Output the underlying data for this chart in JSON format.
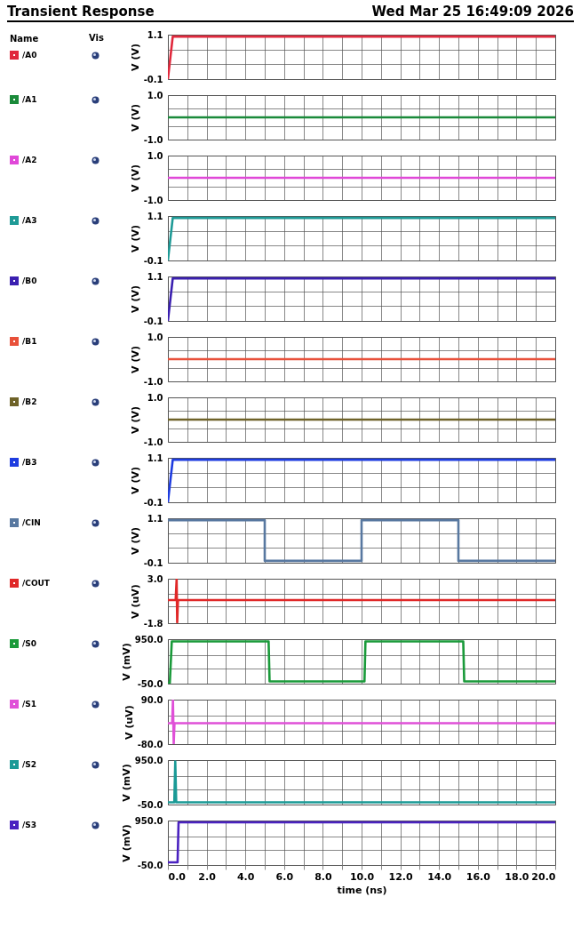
{
  "chart_data": [
    {
      "type": "line",
      "title": "Transient Response",
      "annotations": [
        "Wed Mar 25 16:49:09 2026",
        "Vis"
      ],
      "legend_title": "Name",
      "legend": "left",
      "grid": true,
      "tick_labels": "y",
      "ylabel": "V (V)",
      "x": [
        0,
        0.25,
        20
      ],
      "xlim": [
        0,
        20
      ],
      "xticks": [
        0,
        1,
        2,
        3,
        4,
        5,
        6,
        7,
        8,
        9,
        10,
        11,
        12,
        13,
        14,
        15,
        16,
        17,
        18,
        19,
        20
      ],
      "ylim": [
        -0.1,
        1.1
      ],
      "yticks": [
        -0.1,
        {
          "value": 0.3,
          "label": null
        },
        {
          "value": 0.7,
          "label": null
        },
        1.1
      ],
      "series": [
        {
          "name": "/A0",
          "color": "#e0283c",
          "values": [
            -0.1,
            1.05,
            1.05
          ]
        }
      ]
    },
    {
      "type": "line",
      "legend": "left",
      "grid": true,
      "tick_labels": "y",
      "ylabel": "V (V)",
      "x": [
        0,
        20
      ],
      "xlim": [
        0,
        20
      ],
      "xticks": [
        0,
        1,
        2,
        3,
        4,
        5,
        6,
        7,
        8,
        9,
        10,
        11,
        12,
        13,
        14,
        15,
        16,
        17,
        18,
        19,
        20
      ],
      "ylim": [
        -1,
        1
      ],
      "yticks": [
        {
          "value": -1,
          "label": "-1.0"
        },
        {
          "value": -0.4,
          "label": null
        },
        {
          "value": 0.4,
          "label": null
        },
        {
          "value": 1,
          "label": "1.0"
        }
      ],
      "series": [
        {
          "name": "/A1",
          "color": "#1a8a3a",
          "values": [
            0,
            0
          ]
        }
      ]
    },
    {
      "type": "line",
      "legend": "left",
      "grid": true,
      "tick_labels": "y",
      "ylabel": "V (V)",
      "x": [
        0,
        20
      ],
      "xlim": [
        0,
        20
      ],
      "xticks": [
        0,
        1,
        2,
        3,
        4,
        5,
        6,
        7,
        8,
        9,
        10,
        11,
        12,
        13,
        14,
        15,
        16,
        17,
        18,
        19,
        20
      ],
      "ylim": [
        -1,
        1
      ],
      "yticks": [
        {
          "value": -1,
          "label": "-1.0"
        },
        {
          "value": -0.4,
          "label": null
        },
        {
          "value": 0.4,
          "label": null
        },
        {
          "value": 1,
          "label": "1.0"
        }
      ],
      "series": [
        {
          "name": "/A2",
          "color": "#e048d8",
          "values": [
            0,
            0
          ]
        }
      ]
    },
    {
      "type": "line",
      "legend": "left",
      "grid": true,
      "tick_labels": "y",
      "ylabel": "V (V)",
      "x": [
        0,
        0.25,
        20
      ],
      "xlim": [
        0,
        20
      ],
      "xticks": [
        0,
        1,
        2,
        3,
        4,
        5,
        6,
        7,
        8,
        9,
        10,
        11,
        12,
        13,
        14,
        15,
        16,
        17,
        18,
        19,
        20
      ],
      "ylim": [
        -0.1,
        1.1
      ],
      "yticks": [
        -0.1,
        {
          "value": 0.3,
          "label": null
        },
        {
          "value": 0.7,
          "label": null
        },
        1.1
      ],
      "series": [
        {
          "name": "/A3",
          "color": "#1e9a96",
          "values": [
            -0.1,
            1.05,
            1.05
          ]
        }
      ]
    },
    {
      "type": "line",
      "legend": "left",
      "grid": true,
      "tick_labels": "y",
      "ylabel": "V (V)",
      "x": [
        0,
        0.25,
        20
      ],
      "xlim": [
        0,
        20
      ],
      "xticks": [
        0,
        1,
        2,
        3,
        4,
        5,
        6,
        7,
        8,
        9,
        10,
        11,
        12,
        13,
        14,
        15,
        16,
        17,
        18,
        19,
        20
      ],
      "ylim": [
        -0.1,
        1.1
      ],
      "yticks": [
        -0.1,
        {
          "value": 0.3,
          "label": null
        },
        {
          "value": 0.7,
          "label": null
        },
        1.1
      ],
      "series": [
        {
          "name": "/B0",
          "color": "#3a1fb0",
          "values": [
            -0.1,
            1.05,
            1.05
          ]
        }
      ]
    },
    {
      "type": "line",
      "legend": "left",
      "grid": true,
      "tick_labels": "y",
      "ylabel": "V (V)",
      "x": [
        0,
        20
      ],
      "xlim": [
        0,
        20
      ],
      "xticks": [
        0,
        1,
        2,
        3,
        4,
        5,
        6,
        7,
        8,
        9,
        10,
        11,
        12,
        13,
        14,
        15,
        16,
        17,
        18,
        19,
        20
      ],
      "ylim": [
        -1,
        1
      ],
      "yticks": [
        {
          "value": -1,
          "label": "-1.0"
        },
        {
          "value": -0.4,
          "label": null
        },
        {
          "value": 0.4,
          "label": null
        },
        {
          "value": 1,
          "label": "1.0"
        }
      ],
      "series": [
        {
          "name": "/B1",
          "color": "#e8503a",
          "values": [
            0,
            0
          ]
        }
      ]
    },
    {
      "type": "line",
      "legend": "left",
      "grid": true,
      "tick_labels": "y",
      "ylabel": "V (V)",
      "x": [
        0,
        20
      ],
      "xlim": [
        0,
        20
      ],
      "xticks": [
        0,
        1,
        2,
        3,
        4,
        5,
        6,
        7,
        8,
        9,
        10,
        11,
        12,
        13,
        14,
        15,
        16,
        17,
        18,
        19,
        20
      ],
      "ylim": [
        -1,
        1
      ],
      "yticks": [
        {
          "value": -1,
          "label": "-1.0"
        },
        {
          "value": -0.4,
          "label": null
        },
        {
          "value": 0.4,
          "label": null
        },
        {
          "value": 1,
          "label": "1.0"
        }
      ],
      "series": [
        {
          "name": "/B2",
          "color": "#6e6228",
          "values": [
            0,
            0
          ]
        }
      ]
    },
    {
      "type": "line",
      "legend": "left",
      "grid": true,
      "tick_labels": "y",
      "ylabel": "V (V)",
      "x": [
        0,
        0.25,
        20
      ],
      "xlim": [
        0,
        20
      ],
      "xticks": [
        0,
        1,
        2,
        3,
        4,
        5,
        6,
        7,
        8,
        9,
        10,
        11,
        12,
        13,
        14,
        15,
        16,
        17,
        18,
        19,
        20
      ],
      "ylim": [
        -0.1,
        1.1
      ],
      "yticks": [
        -0.1,
        {
          "value": 0.3,
          "label": null
        },
        {
          "value": 0.7,
          "label": null
        },
        1.1
      ],
      "series": [
        {
          "name": "/B3",
          "color": "#1e3ce0",
          "values": [
            -0.1,
            1.05,
            1.05
          ]
        }
      ]
    },
    {
      "type": "line",
      "legend": "left",
      "grid": true,
      "tick_labels": "y",
      "ylabel": "V (V)",
      "x": [
        0,
        5,
        5,
        10,
        10,
        15,
        15,
        20
      ],
      "xlim": [
        0,
        20
      ],
      "xticks": [
        0,
        1,
        2,
        3,
        4,
        5,
        6,
        7,
        8,
        9,
        10,
        11,
        12,
        13,
        14,
        15,
        16,
        17,
        18,
        19,
        20
      ],
      "ylim": [
        -0.1,
        1.1
      ],
      "yticks": [
        -0.1,
        {
          "value": 0.3,
          "label": null
        },
        {
          "value": 0.7,
          "label": null
        },
        1.1
      ],
      "series": [
        {
          "name": "/CIN",
          "color": "#5878a0",
          "values": [
            1.05,
            1.05,
            -0.05,
            -0.05,
            1.05,
            1.05,
            -0.05,
            -0.05
          ]
        }
      ]
    },
    {
      "type": "line",
      "legend": "left",
      "grid": true,
      "tick_labels": "y",
      "ylabel": "V (uV)",
      "x": [
        0,
        0.4,
        0.45,
        0.48,
        0.52,
        20
      ],
      "xlim": [
        0,
        20
      ],
      "xticks": [
        0,
        1,
        2,
        3,
        4,
        5,
        6,
        7,
        8,
        9,
        10,
        11,
        12,
        13,
        14,
        15,
        16,
        17,
        18,
        19,
        20
      ],
      "ylim": [
        -1.8,
        3
      ],
      "yticks": [
        -1.8,
        {
          "value": 0,
          "label": null
        },
        {
          "value": 1.4,
          "label": null
        },
        {
          "value": 3,
          "label": "3.0"
        }
      ],
      "series": [
        {
          "name": "/COUT",
          "color": "#e02828",
          "values": [
            0.7,
            0.7,
            2.9,
            -1.7,
            0.7,
            0.7
          ]
        }
      ]
    },
    {
      "type": "line",
      "legend": "left",
      "grid": true,
      "tick_labels": "y",
      "ylabel": "V (mV)",
      "x": [
        0,
        0.1,
        0.2,
        5.2,
        5.25,
        10.15,
        10.2,
        15.25,
        15.3,
        20
      ],
      "xlim": [
        0,
        20
      ],
      "xticks": [
        0,
        1,
        2,
        3,
        4,
        5,
        6,
        7,
        8,
        9,
        10,
        11,
        12,
        13,
        14,
        15,
        16,
        17,
        18,
        19,
        20
      ],
      "ylim": [
        -50,
        950
      ],
      "yticks": [
        {
          "value": -50,
          "label": "-50.0"
        },
        {
          "value": 300,
          "label": null
        },
        {
          "value": 600,
          "label": null
        },
        {
          "value": 950,
          "label": "950.0"
        }
      ],
      "series": [
        {
          "name": "/S0",
          "color": "#1a9a3a",
          "values": [
            -30,
            -30,
            900,
            900,
            0,
            0,
            900,
            900,
            0,
            0
          ]
        }
      ]
    },
    {
      "type": "line",
      "legend": "left",
      "grid": true,
      "tick_labels": "y",
      "ylabel": "V (uV)",
      "x": [
        0,
        0.22,
        0.26,
        0.3,
        0.34,
        20
      ],
      "xlim": [
        0,
        20
      ],
      "xticks": [
        0,
        1,
        2,
        3,
        4,
        5,
        6,
        7,
        8,
        9,
        10,
        11,
        12,
        13,
        14,
        15,
        16,
        17,
        18,
        19,
        20
      ],
      "ylim": [
        -80,
        90
      ],
      "yticks": [
        {
          "value": -80,
          "label": "-80.0"
        },
        {
          "value": -30,
          "label": null
        },
        {
          "value": 30,
          "label": null
        },
        {
          "value": 90,
          "label": "90.0"
        }
      ],
      "series": [
        {
          "name": "/S1",
          "color": "#e050d8",
          "values": [
            0,
            0,
            88,
            -78,
            0,
            0
          ]
        }
      ]
    },
    {
      "type": "line",
      "legend": "left",
      "grid": true,
      "tick_labels": "y",
      "ylabel": "V (mV)",
      "x": [
        0,
        0.33,
        0.38,
        0.43,
        20
      ],
      "xlim": [
        0,
        20
      ],
      "xticks": [
        0,
        1,
        2,
        3,
        4,
        5,
        6,
        7,
        8,
        9,
        10,
        11,
        12,
        13,
        14,
        15,
        16,
        17,
        18,
        19,
        20
      ],
      "ylim": [
        -50,
        950
      ],
      "yticks": [
        {
          "value": -50,
          "label": "-50.0"
        },
        {
          "value": 300,
          "label": null
        },
        {
          "value": 600,
          "label": null
        },
        {
          "value": 950,
          "label": "950.0"
        }
      ],
      "series": [
        {
          "name": "/S2",
          "color": "#1a9a96",
          "values": [
            0,
            0,
            920,
            0,
            0
          ]
        }
      ]
    },
    {
      "type": "line",
      "legend": "left",
      "grid": true,
      "ylabel": "V (mV)",
      "xlabel": "time (ns)",
      "x": [
        0,
        0.5,
        0.55,
        20
      ],
      "xlim": [
        0,
        20
      ],
      "xticks": [
        {
          "value": 0,
          "label": "0.0"
        },
        {
          "value": 1,
          "label": null
        },
        {
          "value": 2,
          "label": "2.0"
        },
        {
          "value": 3,
          "label": null
        },
        {
          "value": 4,
          "label": "4.0"
        },
        {
          "value": 5,
          "label": null
        },
        {
          "value": 6,
          "label": "6.0"
        },
        {
          "value": 7,
          "label": null
        },
        {
          "value": 8,
          "label": "8.0"
        },
        {
          "value": 9,
          "label": null
        },
        {
          "value": 10,
          "label": "10.0"
        },
        {
          "value": 11,
          "label": null
        },
        {
          "value": 12,
          "label": "12.0"
        },
        {
          "value": 13,
          "label": null
        },
        {
          "value": 14,
          "label": "14.0"
        },
        {
          "value": 15,
          "label": null
        },
        {
          "value": 16,
          "label": "16.0"
        },
        {
          "value": 17,
          "label": null
        },
        {
          "value": 18,
          "label": "18.0"
        },
        {
          "value": 19,
          "label": null
        },
        {
          "value": 20,
          "label": "20.0"
        }
      ],
      "ylim": [
        -50,
        950
      ],
      "yticks": [
        {
          "value": -50,
          "label": "-50.0"
        },
        {
          "value": 300,
          "label": null
        },
        {
          "value": 600,
          "label": null
        },
        {
          "value": 950,
          "label": "950.0"
        }
      ],
      "series": [
        {
          "name": "/S3",
          "color": "#4a22c0",
          "values": [
            10,
            10,
            910,
            910
          ]
        }
      ]
    }
  ]
}
